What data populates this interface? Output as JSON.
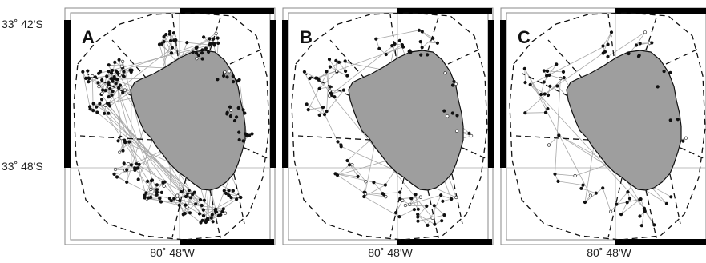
{
  "latitude_labels": [
    "33˚ 42'S",
    "33˚ 48'S"
  ],
  "longitude_label": "80˚ 48'W",
  "panels": [
    {
      "id": "A",
      "label": "A",
      "density": "high"
    },
    {
      "id": "B",
      "label": "B",
      "density": "medium"
    },
    {
      "id": "C",
      "label": "C",
      "density": "low"
    }
  ],
  "colors": {
    "island": "#9e9e9e",
    "island_outline": "#111111",
    "zone_boundary": "#111111",
    "track_line": "#a8a8a8",
    "location_point": "#111111",
    "frame": "#000000"
  }
}
